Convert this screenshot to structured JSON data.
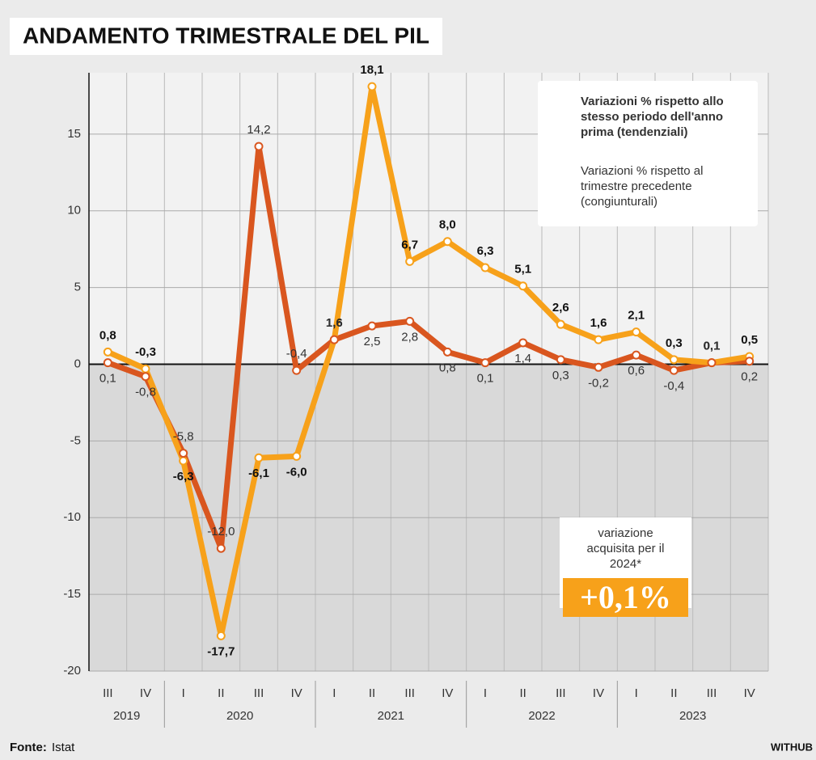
{
  "chart_data": {
    "type": "line",
    "title": "ANDAMENTO TRIMESTRALE DEL PIL",
    "categories": [
      "III",
      "IV",
      "I",
      "II",
      "III",
      "IV",
      "I",
      "II",
      "III",
      "IV",
      "I",
      "II",
      "III",
      "IV",
      "I",
      "II",
      "III",
      "IV"
    ],
    "x_groups": [
      "2019",
      "2020",
      "2021",
      "2022",
      "2023"
    ],
    "ylim": [
      -20,
      19
    ],
    "yticks": [
      -20,
      -15,
      -10,
      -5,
      0,
      5,
      10,
      15
    ],
    "grid": true,
    "legend": "top-right",
    "series": [
      {
        "name": "Variazioni % rispetto allo stesso periodo dell'anno prima (tendenziali)",
        "color": "#f7a11a",
        "values": [
          0.8,
          -0.3,
          -6.3,
          -17.7,
          -6.1,
          -6.0,
          1.6,
          18.1,
          6.7,
          8.0,
          6.3,
          5.1,
          2.6,
          1.6,
          2.1,
          0.3,
          0.1,
          0.5
        ],
        "value_labels": [
          "0,8",
          "-0,3",
          "-6,3",
          "-17,7",
          "-6,1",
          "-6,0",
          "1,6",
          "18,1",
          "6,7",
          "8,0",
          "6,3",
          "5,1",
          "2,6",
          "1,6",
          "2,1",
          "0,3",
          "0,1",
          "0,5"
        ]
      },
      {
        "name": "Variazioni % rispetto al trimestre precedente (congiunturali)",
        "color": "#d9561f",
        "values": [
          0.1,
          -0.8,
          -5.8,
          -12.0,
          14.2,
          -0.4,
          1.6,
          2.5,
          2.8,
          0.8,
          0.1,
          1.4,
          0.3,
          -0.2,
          0.6,
          -0.4,
          0.1,
          0.2
        ],
        "value_labels": [
          "0,1",
          "-0,8",
          "-5,8",
          "-12,0",
          "14,2",
          "-0,4",
          "1,6",
          "2,5",
          "2,8",
          "0,8",
          "0,1",
          "1,4",
          "0,3",
          "-0,2",
          "0,6",
          "-0,4",
          "0,1",
          "0,2"
        ]
      }
    ],
    "annotation": {
      "text": "variazione acquisita per il 2024*",
      "value_label": "+0,1%"
    },
    "source_label": "Fonte:",
    "source": "Istat",
    "credit": "WITHUB"
  }
}
